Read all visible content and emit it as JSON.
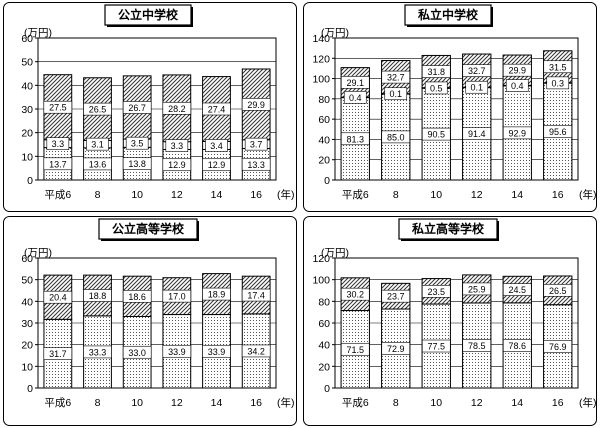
{
  "chart_data": [
    {
      "type": "bar",
      "stacked": true,
      "title": "公立中学校",
      "unit": "(万円)",
      "x_unit": "(年)",
      "categories": [
        "平成6",
        "8",
        "10",
        "12",
        "14",
        "16"
      ],
      "ylim": [
        0,
        60
      ],
      "yticks": [
        0,
        10,
        20,
        30,
        40,
        50,
        60
      ],
      "grid": true,
      "series": [
        {
          "values": [
            13.7,
            13.6,
            13.8,
            12.9,
            12.9,
            13.3
          ],
          "pattern": "dots"
        },
        {
          "values": [
            3.3,
            3.1,
            3.5,
            3.3,
            3.4,
            3.7
          ],
          "pattern": "white"
        },
        {
          "values": [
            27.5,
            26.5,
            26.7,
            28.2,
            27.4,
            29.9
          ],
          "pattern": "hatch"
        }
      ]
    },
    {
      "type": "bar",
      "stacked": true,
      "title": "私立中学校",
      "unit": "(万円)",
      "x_unit": "(年)",
      "categories": [
        "平成6",
        "8",
        "10",
        "12",
        "14",
        "16"
      ],
      "ylim": [
        0,
        140
      ],
      "yticks": [
        0,
        20,
        40,
        60,
        80,
        100,
        120,
        140
      ],
      "grid": true,
      "series": [
        {
          "values": [
            81.3,
            85.0,
            90.5,
            91.4,
            92.9,
            95.6
          ],
          "pattern": "dots"
        },
        {
          "values": [
            0.4,
            0.1,
            0.5,
            0.1,
            0.4,
            0.3
          ],
          "pattern": "white"
        },
        {
          "values": [
            29.1,
            32.7,
            31.8,
            32.7,
            29.9,
            31.5
          ],
          "pattern": "hatch"
        }
      ]
    },
    {
      "type": "bar",
      "stacked": true,
      "title": "公立高等学校",
      "unit": "(万円)",
      "x_unit": "(年)",
      "categories": [
        "平成6",
        "8",
        "10",
        "12",
        "14",
        "16"
      ],
      "ylim": [
        0,
        60
      ],
      "yticks": [
        0,
        10,
        20,
        30,
        40,
        50,
        60
      ],
      "grid": true,
      "series": [
        {
          "values": [
            31.7,
            33.3,
            33.0,
            33.9,
            33.9,
            34.2
          ],
          "pattern": "dots"
        },
        {
          "values": [
            20.4,
            18.8,
            18.6,
            17.0,
            18.9,
            17.4
          ],
          "pattern": "hatch"
        }
      ]
    },
    {
      "type": "bar",
      "stacked": true,
      "title": "私立高等学校",
      "unit": "(万円)",
      "x_unit": "(年)",
      "categories": [
        "平成6",
        "8",
        "10",
        "12",
        "14",
        "16"
      ],
      "ylim": [
        0,
        120
      ],
      "yticks": [
        0,
        20,
        40,
        60,
        80,
        100,
        120
      ],
      "grid": true,
      "series": [
        {
          "values": [
            71.5,
            72.9,
            77.5,
            78.5,
            78.6,
            76.9
          ],
          "pattern": "dots"
        },
        {
          "values": [
            30.2,
            23.7,
            23.5,
            25.9,
            24.5,
            26.5
          ],
          "pattern": "hatch"
        }
      ]
    }
  ]
}
